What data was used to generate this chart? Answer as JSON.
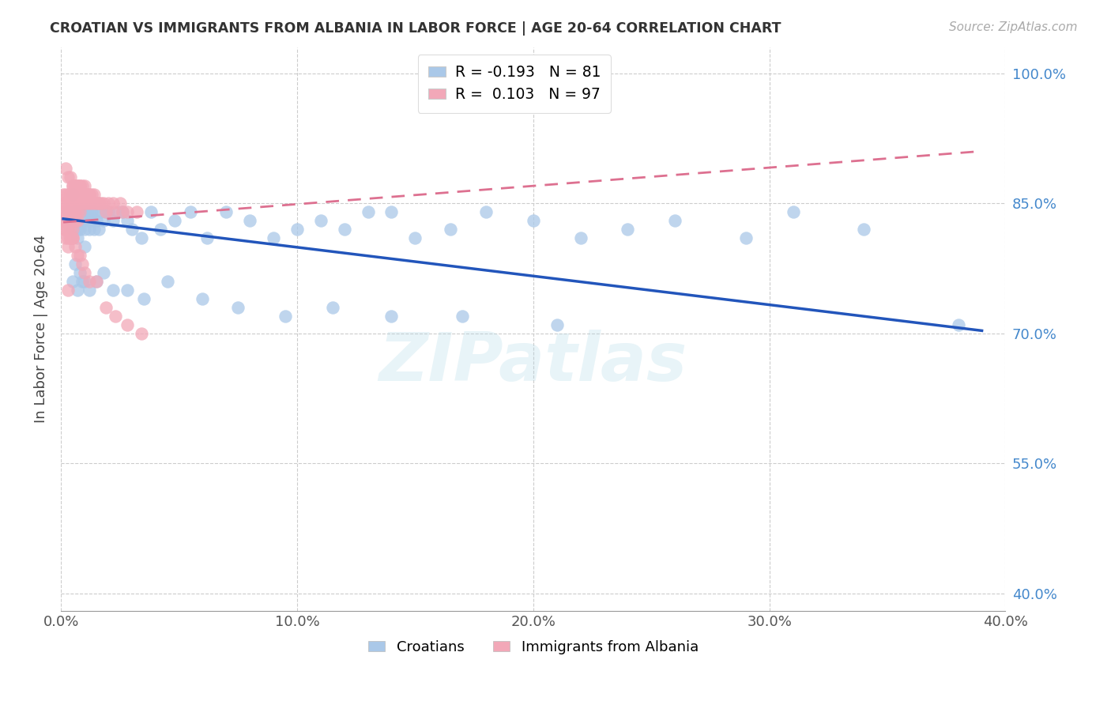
{
  "title": "CROATIAN VS IMMIGRANTS FROM ALBANIA IN LABOR FORCE | AGE 20-64 CORRELATION CHART",
  "source": "Source: ZipAtlas.com",
  "ylabel": "In Labor Force | Age 20-64",
  "legend_blue_R": "-0.193",
  "legend_blue_N": "81",
  "legend_pink_R": "0.103",
  "legend_pink_N": "97",
  "legend_label_blue": "Croatians",
  "legend_label_pink": "Immigrants from Albania",
  "blue_scatter_color": "#aac8e8",
  "pink_scatter_color": "#f2a8b8",
  "blue_line_color": "#2255bb",
  "pink_line_color": "#dd7090",
  "watermark_text": "ZIPatlas",
  "xlim": [
    0.0,
    0.4
  ],
  "ylim": [
    0.38,
    1.03
  ],
  "xgrid_ticks": [
    0.0,
    0.1,
    0.2,
    0.3,
    0.4
  ],
  "ygrid_ticks": [
    0.4,
    0.55,
    0.7,
    0.85,
    1.0
  ],
  "blue_x": [
    0.003,
    0.004,
    0.005,
    0.005,
    0.006,
    0.006,
    0.007,
    0.007,
    0.007,
    0.008,
    0.008,
    0.008,
    0.009,
    0.009,
    0.01,
    0.01,
    0.01,
    0.011,
    0.011,
    0.012,
    0.012,
    0.013,
    0.013,
    0.014,
    0.014,
    0.015,
    0.016,
    0.017,
    0.018,
    0.019,
    0.02,
    0.022,
    0.024,
    0.026,
    0.028,
    0.03,
    0.034,
    0.038,
    0.042,
    0.048,
    0.055,
    0.062,
    0.07,
    0.08,
    0.09,
    0.1,
    0.11,
    0.12,
    0.13,
    0.14,
    0.15,
    0.165,
    0.18,
    0.2,
    0.22,
    0.24,
    0.26,
    0.29,
    0.31,
    0.34,
    0.005,
    0.006,
    0.007,
    0.008,
    0.009,
    0.01,
    0.012,
    0.015,
    0.018,
    0.022,
    0.028,
    0.035,
    0.045,
    0.06,
    0.075,
    0.095,
    0.115,
    0.14,
    0.17,
    0.21,
    0.38
  ],
  "blue_y": [
    0.84,
    0.83,
    0.86,
    0.82,
    0.84,
    0.83,
    0.84,
    0.82,
    0.81,
    0.84,
    0.83,
    0.82,
    0.84,
    0.83,
    0.84,
    0.82,
    0.8,
    0.84,
    0.83,
    0.84,
    0.82,
    0.84,
    0.83,
    0.84,
    0.82,
    0.83,
    0.82,
    0.84,
    0.83,
    0.84,
    0.84,
    0.83,
    0.84,
    0.84,
    0.83,
    0.82,
    0.81,
    0.84,
    0.82,
    0.83,
    0.84,
    0.81,
    0.84,
    0.83,
    0.81,
    0.82,
    0.83,
    0.82,
    0.84,
    0.84,
    0.81,
    0.82,
    0.84,
    0.83,
    0.81,
    0.82,
    0.83,
    0.81,
    0.84,
    0.82,
    0.76,
    0.78,
    0.75,
    0.77,
    0.76,
    0.76,
    0.75,
    0.76,
    0.77,
    0.75,
    0.75,
    0.74,
    0.76,
    0.74,
    0.73,
    0.72,
    0.73,
    0.72,
    0.72,
    0.71,
    0.71
  ],
  "pink_x": [
    0.001,
    0.001,
    0.001,
    0.001,
    0.001,
    0.002,
    0.002,
    0.002,
    0.002,
    0.002,
    0.002,
    0.003,
    0.003,
    0.003,
    0.003,
    0.003,
    0.003,
    0.003,
    0.004,
    0.004,
    0.004,
    0.004,
    0.004,
    0.004,
    0.005,
    0.005,
    0.005,
    0.005,
    0.005,
    0.005,
    0.005,
    0.006,
    0.006,
    0.006,
    0.006,
    0.006,
    0.007,
    0.007,
    0.007,
    0.007,
    0.007,
    0.008,
    0.008,
    0.008,
    0.008,
    0.009,
    0.009,
    0.009,
    0.01,
    0.01,
    0.01,
    0.011,
    0.011,
    0.012,
    0.012,
    0.013,
    0.013,
    0.014,
    0.015,
    0.016,
    0.017,
    0.018,
    0.02,
    0.022,
    0.025,
    0.028,
    0.032,
    0.002,
    0.003,
    0.004,
    0.005,
    0.006,
    0.007,
    0.008,
    0.009,
    0.01,
    0.011,
    0.012,
    0.014,
    0.016,
    0.019,
    0.022,
    0.026,
    0.003,
    0.004,
    0.005,
    0.006,
    0.007,
    0.008,
    0.009,
    0.01,
    0.012,
    0.015,
    0.019,
    0.023,
    0.028,
    0.034
  ],
  "pink_y": [
    0.84,
    0.85,
    0.86,
    0.83,
    0.82,
    0.86,
    0.85,
    0.84,
    0.83,
    0.82,
    0.81,
    0.86,
    0.85,
    0.84,
    0.83,
    0.82,
    0.81,
    0.8,
    0.86,
    0.85,
    0.84,
    0.83,
    0.82,
    0.81,
    0.87,
    0.86,
    0.85,
    0.84,
    0.83,
    0.82,
    0.81,
    0.87,
    0.86,
    0.85,
    0.84,
    0.83,
    0.87,
    0.86,
    0.85,
    0.84,
    0.83,
    0.87,
    0.86,
    0.85,
    0.84,
    0.87,
    0.86,
    0.85,
    0.87,
    0.86,
    0.85,
    0.86,
    0.85,
    0.86,
    0.85,
    0.86,
    0.85,
    0.86,
    0.85,
    0.85,
    0.85,
    0.85,
    0.85,
    0.85,
    0.85,
    0.84,
    0.84,
    0.89,
    0.88,
    0.88,
    0.87,
    0.87,
    0.87,
    0.87,
    0.86,
    0.86,
    0.86,
    0.86,
    0.85,
    0.85,
    0.84,
    0.84,
    0.84,
    0.75,
    0.81,
    0.81,
    0.8,
    0.79,
    0.79,
    0.78,
    0.77,
    0.76,
    0.76,
    0.73,
    0.72,
    0.71,
    0.7
  ],
  "blue_trend_x": [
    0.001,
    0.39
  ],
  "blue_trend_y": [
    0.832,
    0.703
  ],
  "pink_trend_x": [
    0.001,
    0.39
  ],
  "pink_trend_y": [
    0.828,
    0.91
  ]
}
